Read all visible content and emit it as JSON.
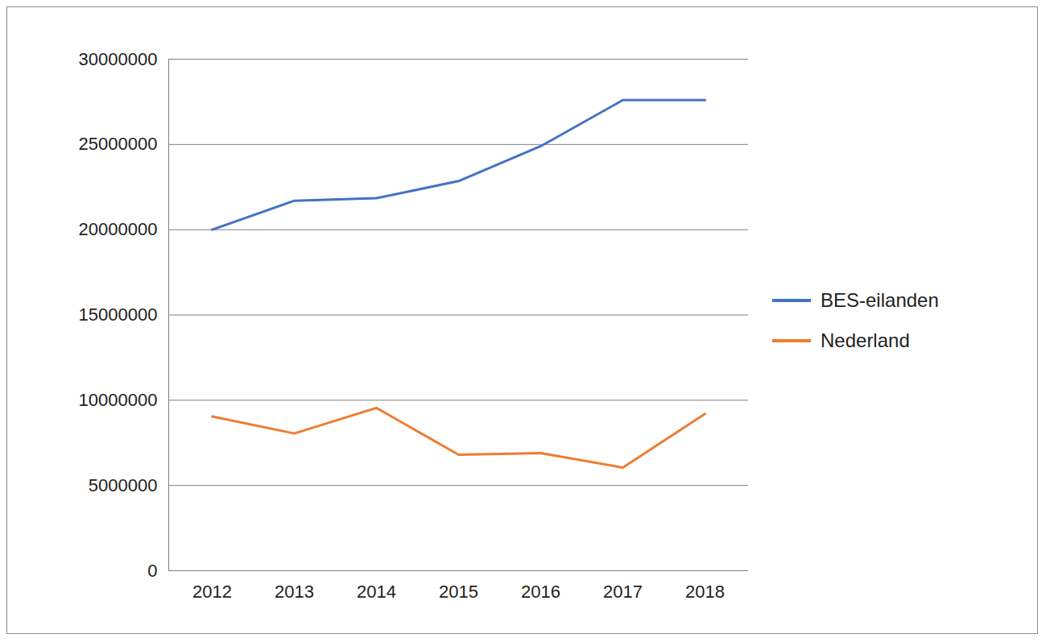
{
  "chart_data": {
    "type": "line",
    "categories": [
      "2012",
      "2013",
      "2014",
      "2015",
      "2016",
      "2017",
      "2018"
    ],
    "series": [
      {
        "name": "BES-eilanden",
        "color": "#4472c4",
        "values": [
          20000000,
          21700000,
          21850000,
          22850000,
          24900000,
          27600000,
          27600000
        ]
      },
      {
        "name": "Nederland",
        "color": "#ed7d31",
        "values": [
          9050000,
          8050000,
          9550000,
          6800000,
          6900000,
          6050000,
          9200000
        ]
      }
    ],
    "ylim": [
      0,
      30000000
    ],
    "yticks": [
      0,
      5000000,
      10000000,
      15000000,
      20000000,
      25000000,
      30000000
    ],
    "grid": true,
    "legend": "right"
  }
}
